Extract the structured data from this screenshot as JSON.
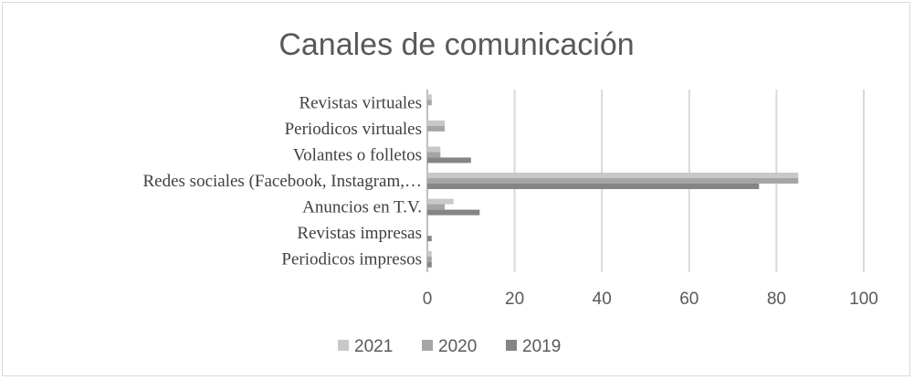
{
  "chart_data": {
    "type": "bar",
    "orientation": "horizontal",
    "title": "Canales de comunicación",
    "categories": [
      "Revistas virtuales",
      "Periodicos virtuales",
      "Volantes o folletos",
      "Redes sociales (Facebook, Instagram,…",
      "Anuncios en T.V.",
      "Revistas impresas",
      "Periodicos impresos"
    ],
    "series": [
      {
        "name": "2021",
        "color": "#c8c8c8",
        "values": [
          1,
          4,
          3,
          85,
          6,
          0,
          1
        ]
      },
      {
        "name": "2020",
        "color": "#a5a5a5",
        "values": [
          1,
          4,
          3,
          85,
          4,
          0,
          1
        ]
      },
      {
        "name": "2019",
        "color": "#858585",
        "values": [
          0,
          0,
          10,
          76,
          12,
          1,
          1
        ]
      }
    ],
    "xlim": [
      0,
      100
    ],
    "xticks": [
      "0",
      "20",
      "40",
      "60",
      "80",
      "100"
    ],
    "grid": true,
    "legend": "bottom"
  }
}
